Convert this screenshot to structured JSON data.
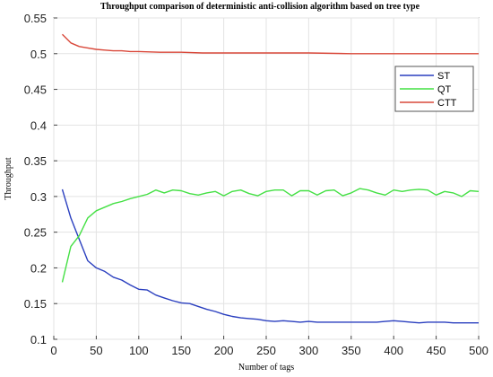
{
  "chart_data": {
    "type": "line",
    "title": "Throughput comparison of deterministic anti-collision algorithm based on tree type",
    "xlabel": "Number of tags",
    "ylabel": "Throughput",
    "xlim": [
      0,
      500
    ],
    "ylim": [
      0.1,
      0.55
    ],
    "xticks": [
      0,
      50,
      100,
      150,
      200,
      250,
      300,
      350,
      400,
      450,
      500
    ],
    "yticks": [
      0.1,
      0.15,
      0.2,
      0.25,
      0.3,
      0.35,
      0.4,
      0.45,
      0.5,
      0.55
    ],
    "grid": true,
    "legend_position": "top-right",
    "series": [
      {
        "name": "ST",
        "color": "#2a3fbf",
        "x": [
          10,
          20,
          30,
          40,
          50,
          60,
          70,
          80,
          90,
          100,
          110,
          120,
          130,
          140,
          150,
          160,
          170,
          180,
          190,
          200,
          210,
          220,
          230,
          240,
          250,
          260,
          270,
          280,
          290,
          300,
          310,
          320,
          330,
          340,
          350,
          360,
          370,
          380,
          390,
          400,
          410,
          420,
          430,
          440,
          450,
          460,
          470,
          480,
          490,
          500
        ],
        "values": [
          0.31,
          0.27,
          0.24,
          0.21,
          0.2,
          0.195,
          0.187,
          0.183,
          0.176,
          0.17,
          0.169,
          0.162,
          0.158,
          0.154,
          0.151,
          0.15,
          0.146,
          0.142,
          0.139,
          0.135,
          0.132,
          0.13,
          0.129,
          0.128,
          0.126,
          0.125,
          0.126,
          0.125,
          0.124,
          0.125,
          0.124,
          0.124,
          0.124,
          0.124,
          0.124,
          0.124,
          0.124,
          0.124,
          0.125,
          0.126,
          0.125,
          0.124,
          0.123,
          0.124,
          0.124,
          0.124,
          0.123,
          0.123,
          0.123,
          0.123
        ]
      },
      {
        "name": "QT",
        "color": "#44e044",
        "x": [
          10,
          20,
          30,
          40,
          50,
          60,
          70,
          80,
          90,
          100,
          110,
          120,
          130,
          140,
          150,
          160,
          170,
          180,
          190,
          200,
          210,
          220,
          230,
          240,
          250,
          260,
          270,
          280,
          290,
          300,
          310,
          320,
          330,
          340,
          350,
          360,
          370,
          380,
          390,
          400,
          410,
          420,
          430,
          440,
          450,
          460,
          470,
          480,
          490,
          500
        ],
        "values": [
          0.18,
          0.23,
          0.245,
          0.27,
          0.28,
          0.285,
          0.29,
          0.293,
          0.297,
          0.3,
          0.303,
          0.309,
          0.305,
          0.309,
          0.308,
          0.304,
          0.302,
          0.305,
          0.307,
          0.301,
          0.307,
          0.309,
          0.304,
          0.301,
          0.307,
          0.309,
          0.309,
          0.301,
          0.308,
          0.308,
          0.302,
          0.308,
          0.309,
          0.301,
          0.305,
          0.311,
          0.309,
          0.305,
          0.302,
          0.309,
          0.307,
          0.309,
          0.31,
          0.309,
          0.302,
          0.307,
          0.305,
          0.3,
          0.308,
          0.307
        ]
      },
      {
        "name": "CTT",
        "color": "#d9483a",
        "x": [
          10,
          20,
          30,
          40,
          50,
          60,
          70,
          80,
          90,
          100,
          125,
          150,
          175,
          200,
          250,
          300,
          350,
          400,
          450,
          500
        ],
        "values": [
          0.527,
          0.515,
          0.51,
          0.508,
          0.506,
          0.505,
          0.504,
          0.504,
          0.503,
          0.503,
          0.502,
          0.502,
          0.501,
          0.501,
          0.501,
          0.501,
          0.5,
          0.5,
          0.5,
          0.5
        ]
      }
    ]
  }
}
